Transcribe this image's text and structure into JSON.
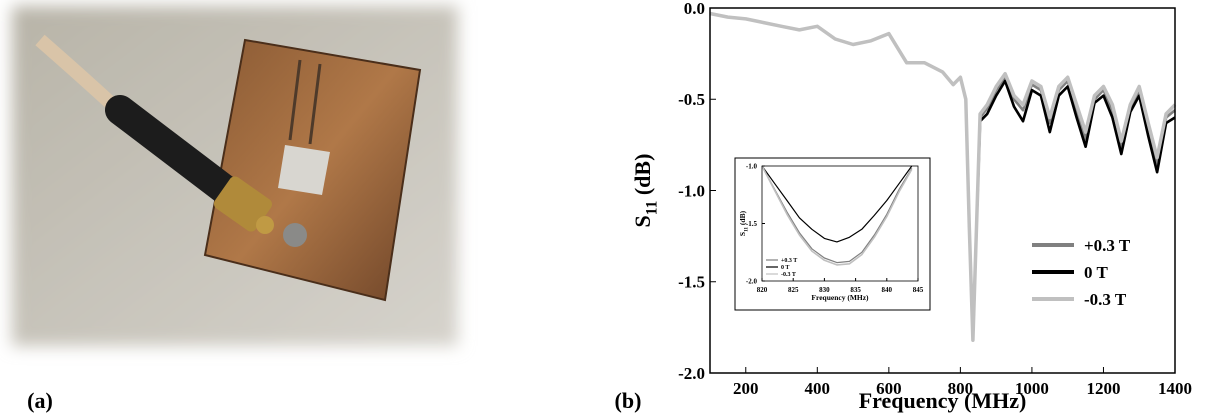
{
  "panel_labels": [
    "(a)",
    "(b)"
  ],
  "chart_data": [
    {
      "type": "line",
      "xlabel": "Frequency (MHz)",
      "ylabel": [
        "S",
        "11",
        " (dB)"
      ],
      "xlim": [
        100,
        1400
      ],
      "xticks": [
        200,
        400,
        600,
        800,
        1000,
        1200,
        1400
      ],
      "ylim": [
        -2.0,
        0.0
      ],
      "yticks": [
        {
          "value": -2.0,
          "label": "-2.0"
        },
        -1.5,
        {
          "value": -1.0,
          "label": "-1.0"
        },
        -0.5,
        {
          "value": 0.0,
          "label": "0.0"
        }
      ],
      "legend": "lower right",
      "x": [
        100,
        150,
        200,
        250,
        300,
        350,
        400,
        450,
        500,
        550,
        600,
        650,
        700,
        750,
        780,
        800,
        815,
        825,
        835,
        845,
        855,
        875,
        900,
        925,
        950,
        975,
        1000,
        1025,
        1050,
        1075,
        1100,
        1125,
        1150,
        1175,
        1200,
        1225,
        1250,
        1275,
        1300,
        1325,
        1350,
        1375,
        1400
      ],
      "series": [
        {
          "name": "+0.3 T",
          "color": "#808080",
          "values": [
            -0.03,
            -0.05,
            -0.06,
            -0.08,
            -0.1,
            -0.12,
            -0.1,
            -0.17,
            -0.2,
            -0.18,
            -0.14,
            -0.3,
            -0.3,
            -0.35,
            -0.42,
            -0.38,
            -0.5,
            -1.2,
            -1.82,
            -1.2,
            -0.6,
            -0.55,
            -0.45,
            -0.38,
            -0.5,
            -0.56,
            -0.42,
            -0.45,
            -0.63,
            -0.45,
            -0.4,
            -0.56,
            -0.72,
            -0.5,
            -0.45,
            -0.56,
            -0.77,
            -0.55,
            -0.45,
            -0.66,
            -0.86,
            -0.6,
            -0.56
          ]
        },
        {
          "name": "0 T",
          "color": "#000000",
          "values": [
            -0.03,
            -0.05,
            -0.06,
            -0.08,
            -0.1,
            -0.12,
            -0.1,
            -0.17,
            -0.2,
            -0.18,
            -0.14,
            -0.3,
            -0.3,
            -0.35,
            -0.42,
            -0.38,
            -0.5,
            -1.2,
            -1.82,
            -1.2,
            -0.62,
            -0.58,
            -0.48,
            -0.4,
            -0.54,
            -0.62,
            -0.45,
            -0.48,
            -0.68,
            -0.48,
            -0.43,
            -0.6,
            -0.76,
            -0.52,
            -0.48,
            -0.6,
            -0.8,
            -0.57,
            -0.48,
            -0.7,
            -0.9,
            -0.63,
            -0.6
          ]
        },
        {
          "name": "-0.3 T",
          "color": "#c0c0c0",
          "values": [
            -0.03,
            -0.05,
            -0.06,
            -0.08,
            -0.1,
            -0.12,
            -0.1,
            -0.17,
            -0.2,
            -0.18,
            -0.14,
            -0.3,
            -0.3,
            -0.35,
            -0.42,
            -0.38,
            -0.5,
            -1.2,
            -1.82,
            -1.2,
            -0.58,
            -0.53,
            -0.43,
            -0.36,
            -0.48,
            -0.53,
            -0.4,
            -0.43,
            -0.6,
            -0.43,
            -0.38,
            -0.53,
            -0.68,
            -0.48,
            -0.43,
            -0.53,
            -0.73,
            -0.53,
            -0.43,
            -0.63,
            -0.82,
            -0.58,
            -0.53
          ]
        }
      ]
    },
    {
      "type": "line",
      "xlabel": "Frequency (MHz)",
      "ylabel": [
        "S",
        "11",
        " (dB)"
      ],
      "xlim": [
        820,
        845
      ],
      "xticks": [
        820,
        825,
        830,
        835,
        840,
        845
      ],
      "ylim": [
        -2.0,
        -1.0
      ],
      "yticks": [
        {
          "value": -2.0,
          "label": "-2.0"
        },
        -1.5,
        {
          "value": -1.0,
          "label": "-1.0"
        }
      ],
      "legend": "lower left",
      "x": [
        820,
        822,
        824,
        826,
        828,
        830,
        832,
        834,
        836,
        838,
        840,
        842,
        844
      ],
      "series": [
        {
          "name": "+0.3 T",
          "color": "#808080",
          "values": [
            -1.0,
            -1.2,
            -1.4,
            -1.58,
            -1.72,
            -1.8,
            -1.84,
            -1.83,
            -1.75,
            -1.6,
            -1.42,
            -1.2,
            -1.02
          ]
        },
        {
          "name": "0 T",
          "color": "#000000",
          "values": [
            -1.0,
            -1.15,
            -1.3,
            -1.45,
            -1.55,
            -1.63,
            -1.66,
            -1.62,
            -1.55,
            -1.43,
            -1.3,
            -1.15,
            -1.0
          ]
        },
        {
          "name": "-0.3 T",
          "color": "#c0c0c0",
          "values": [
            -1.0,
            -1.21,
            -1.42,
            -1.6,
            -1.74,
            -1.82,
            -1.86,
            -1.85,
            -1.77,
            -1.62,
            -1.44,
            -1.22,
            -1.03
          ]
        }
      ]
    }
  ]
}
